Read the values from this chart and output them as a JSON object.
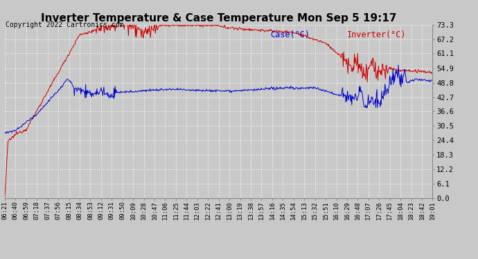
{
  "title": "Inverter Temperature & Case Temperature Mon Sep 5 19:17",
  "copyright": "Copyright 2022 Cartronics.com",
  "legend_case": "Case(°C)",
  "legend_inverter": "Inverter(°C)",
  "yticks": [
    0.0,
    6.1,
    12.2,
    18.3,
    24.4,
    30.5,
    36.6,
    42.7,
    48.8,
    54.9,
    61.1,
    67.2,
    73.3
  ],
  "ymin": 0.0,
  "ymax": 73.3,
  "xtick_labels": [
    "06:21",
    "06:40",
    "06:59",
    "07:18",
    "07:37",
    "07:56",
    "08:15",
    "08:34",
    "08:53",
    "09:12",
    "09:31",
    "09:50",
    "10:09",
    "10:28",
    "10:47",
    "11:06",
    "11:25",
    "11:44",
    "12:03",
    "12:22",
    "12:41",
    "13:00",
    "13:19",
    "13:38",
    "13:57",
    "14:16",
    "14:35",
    "14:54",
    "15:13",
    "15:32",
    "15:51",
    "16:10",
    "16:29",
    "16:48",
    "17:07",
    "17:26",
    "17:45",
    "18:04",
    "18:23",
    "18:42",
    "19:01"
  ],
  "bg_color": "#c8c8c8",
  "plot_bg_color": "#c8c8c8",
  "grid_color": "#ffffff",
  "line_color_red": "#cc0000",
  "line_color_blue": "#0000cc",
  "title_color": "#000000",
  "copyright_color": "#000000",
  "legend_case_color": "#0000cc",
  "legend_inverter_color": "#cc0000",
  "title_fontsize": 11,
  "copyright_fontsize": 7,
  "tick_fontsize": 6.5,
  "ytick_fontsize": 7.5
}
